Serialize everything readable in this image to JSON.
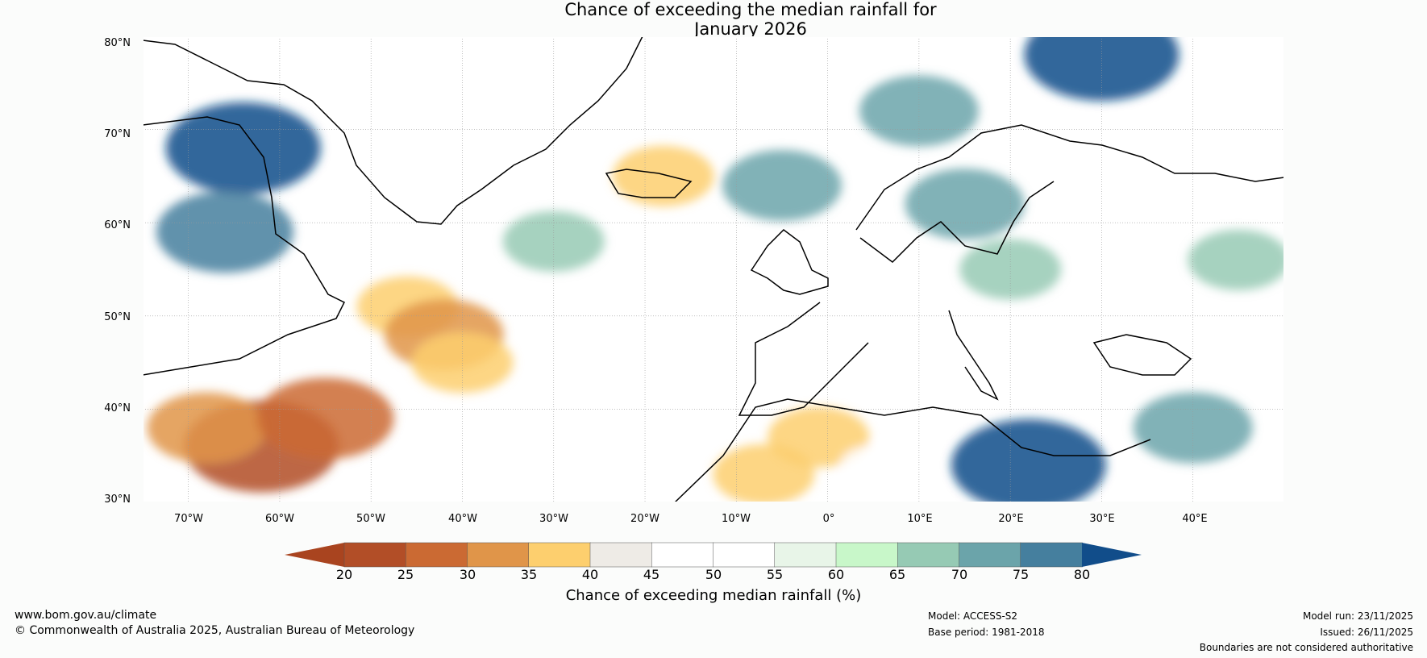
{
  "title": {
    "line1": "Chance of exceeding the median rainfall for",
    "line2": "January 2026"
  },
  "axes": {
    "lat_labels": [
      "80°N",
      "70°N",
      "60°N",
      "50°N",
      "40°N",
      "30°N"
    ],
    "lon_labels": [
      "70°W",
      "60°W",
      "50°W",
      "40°W",
      "30°W",
      "20°W",
      "10°W",
      "0°",
      "10°E",
      "20°E",
      "30°E",
      "40°E"
    ],
    "lat_range": [
      30,
      80
    ],
    "lon_range": [
      -75,
      50
    ]
  },
  "colorbar": {
    "label": "Chance of exceeding median rainfall (%)",
    "ticks": [
      "20",
      "25",
      "30",
      "35",
      "40",
      "45",
      "50",
      "55",
      "60",
      "65",
      "70",
      "75",
      "80"
    ],
    "colors": [
      "#a9441f",
      "#b24e27",
      "#cb6a33",
      "#e09549",
      "#fdcf6e",
      "#eeebe6",
      "#ffffff",
      "#ffffff",
      "#e8f5e8",
      "#c8f7c9",
      "#96cab4",
      "#6ba4aa",
      "#457f9e",
      "#114d8a"
    ]
  },
  "footer": {
    "website": "www.bom.gov.au/climate",
    "copyright": "© Commonwealth of Australia 2025, Australian Bureau of Meteorology",
    "model": "Model: ACCESS-S2",
    "base_period": "Base period: 1981-2018",
    "model_run": "Model run: 23/11/2025",
    "issued": "Issued: 26/11/2025",
    "disclaimer": "Boundaries are not considered authoritative"
  },
  "anomaly_regions": [
    {
      "lon": -62,
      "lat": 36,
      "value": 20
    },
    {
      "lon": -68,
      "lat": 38,
      "value": 30
    },
    {
      "lon": -55,
      "lat": 39,
      "value": 25
    },
    {
      "lon": -46,
      "lat": 51,
      "value": 35
    },
    {
      "lon": -42,
      "lat": 48,
      "value": 30
    },
    {
      "lon": -40,
      "lat": 45,
      "value": 35
    },
    {
      "lon": -64,
      "lat": 68,
      "value": 80
    },
    {
      "lon": -66,
      "lat": 59,
      "value": 75
    },
    {
      "lon": 30,
      "lat": 78,
      "value": 80
    },
    {
      "lon": 22,
      "lat": 34,
      "value": 80
    },
    {
      "lon": 10,
      "lat": 72,
      "value": 70
    },
    {
      "lon": 15,
      "lat": 62,
      "value": 70
    },
    {
      "lon": 40,
      "lat": 38,
      "value": 70
    },
    {
      "lon": -1,
      "lat": 37,
      "value": 35
    },
    {
      "lon": -7,
      "lat": 33,
      "value": 35
    },
    {
      "lon": -18,
      "lat": 65,
      "value": 35
    },
    {
      "lon": 20,
      "lat": 55,
      "value": 65
    },
    {
      "lon": 45,
      "lat": 56,
      "value": 65
    },
    {
      "lon": -30,
      "lat": 58,
      "value": 65
    },
    {
      "lon": -5,
      "lat": 64,
      "value": 70
    },
    {
      "lon": -25,
      "lat": 40,
      "value": 45
    },
    {
      "lon": 5,
      "lat": 34,
      "value": 45
    }
  ]
}
